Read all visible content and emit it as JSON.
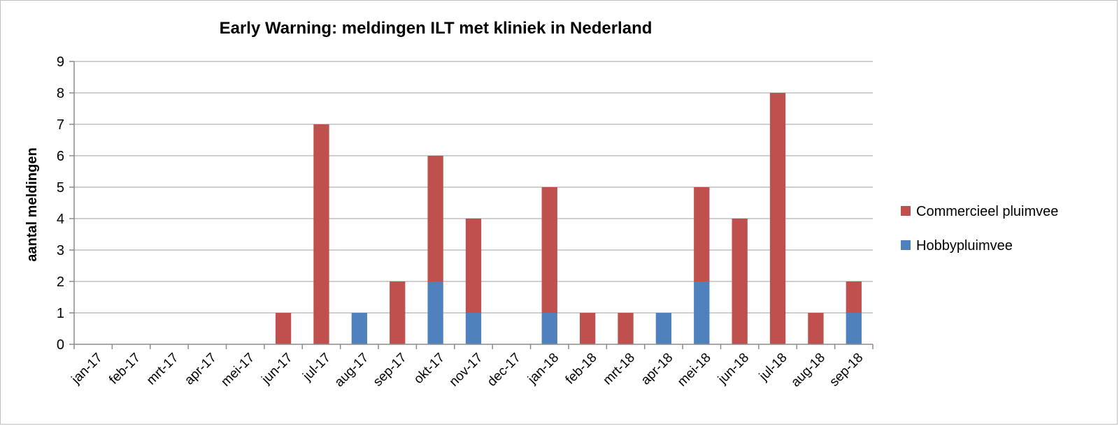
{
  "chart_data": {
    "type": "bar",
    "stacked": true,
    "title": "Early Warning: meldingen ILT met kliniek in Nederland",
    "ylabel": "aantal meldingen",
    "xlabel": "",
    "ylim": [
      0,
      9
    ],
    "yticks": [
      "0",
      "1",
      "2",
      "3",
      "4",
      "5",
      "6",
      "7",
      "8",
      "9"
    ],
    "grid": true,
    "legend_position": "right",
    "categories": [
      "jan-17",
      "feb-17",
      "mrt-17",
      "apr-17",
      "mei-17",
      "jun-17",
      "jul-17",
      "aug-17",
      "sep-17",
      "okt-17",
      "nov-17",
      "dec-17",
      "jan-18",
      "feb-18",
      "mrt-18",
      "apr-18",
      "mei-18",
      "jun-18",
      "jul-18",
      "aug-18",
      "sep-18"
    ],
    "series": [
      {
        "name": "Hobbypluimvee",
        "color": "#4f81bd",
        "values": [
          0,
          0,
          0,
          0,
          0,
          0,
          0,
          1,
          0,
          2,
          1,
          0,
          1,
          0,
          0,
          1,
          2,
          0,
          0,
          0,
          1
        ]
      },
      {
        "name": "Commercieel pluimvee",
        "color": "#c0504d",
        "values": [
          0,
          0,
          0,
          0,
          0,
          1,
          7,
          0,
          2,
          4,
          3,
          0,
          4,
          1,
          1,
          0,
          3,
          4,
          8,
          1,
          1
        ]
      }
    ]
  }
}
